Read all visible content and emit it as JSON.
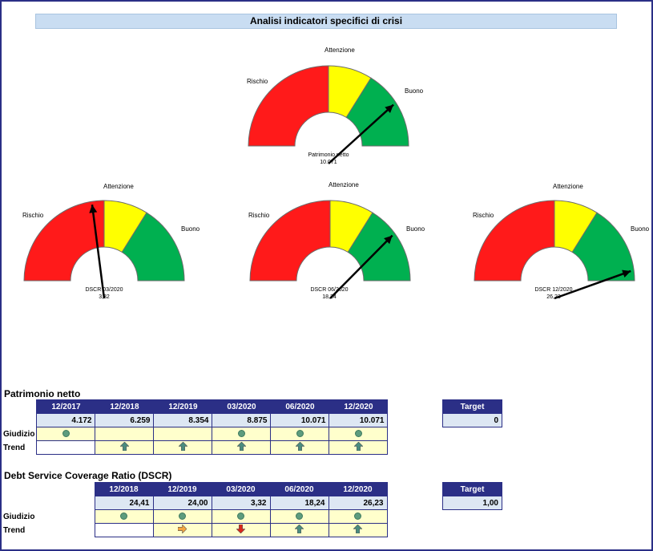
{
  "title": "Analisi indicatori specifici di crisi",
  "gauge_labels": {
    "risk": "Rischio",
    "warn": "Attenzione",
    "good": "Buono"
  },
  "colors": {
    "risk": "#ff1a1a",
    "warn": "#ffff00",
    "good": "#00b050",
    "header": "#2b2f86",
    "dot": "#5d9c7e",
    "arrow_up": "#4a8c7e",
    "arrow_right": "#f4a640",
    "arrow_down": "#d9291c"
  },
  "gauges": [
    {
      "caption_name": "Patrimonio netto",
      "caption_value": "10.071",
      "needle_fraction": 0.82
    },
    {
      "caption_name": "DSCR 03/2020",
      "caption_value": "3,32",
      "needle_fraction": 0.45
    },
    {
      "caption_name": "DSCR 06/2020",
      "caption_value": "18,24",
      "needle_fraction": 0.8
    },
    {
      "caption_name": "DSCR 12/2020",
      "caption_value": "26,23",
      "needle_fraction": 0.96
    }
  ],
  "pn": {
    "section_title": "Patrimonio netto",
    "headers": [
      "12/2017",
      "12/2018",
      "12/2019",
      "03/2020",
      "06/2020",
      "12/2020"
    ],
    "values": [
      "4.172",
      "6.259",
      "8.354",
      "8.875",
      "10.071",
      "10.071"
    ],
    "giudizio_label": "Giudizio",
    "trend_label": "Trend",
    "giudizio": [
      "dot",
      "",
      "",
      "dot",
      "dot",
      "dot"
    ],
    "trend": [
      "",
      "up",
      "up",
      "up",
      "up",
      "up"
    ],
    "target_header": "Target",
    "target_value": "0"
  },
  "dscr": {
    "section_title": "Debt Service Coverage Ratio (DSCR)",
    "headers": [
      "12/2018",
      "12/2019",
      "03/2020",
      "06/2020",
      "12/2020"
    ],
    "values": [
      "24,41",
      "24,00",
      "3,32",
      "18,24",
      "26,23"
    ],
    "giudizio_label": "Giudizio",
    "trend_label": "Trend",
    "giudizio": [
      "dot",
      "dot",
      "dot",
      "dot",
      "dot"
    ],
    "trend": [
      "",
      "right",
      "down",
      "up",
      "up"
    ],
    "target_header": "Target",
    "target_value": "1,00"
  }
}
